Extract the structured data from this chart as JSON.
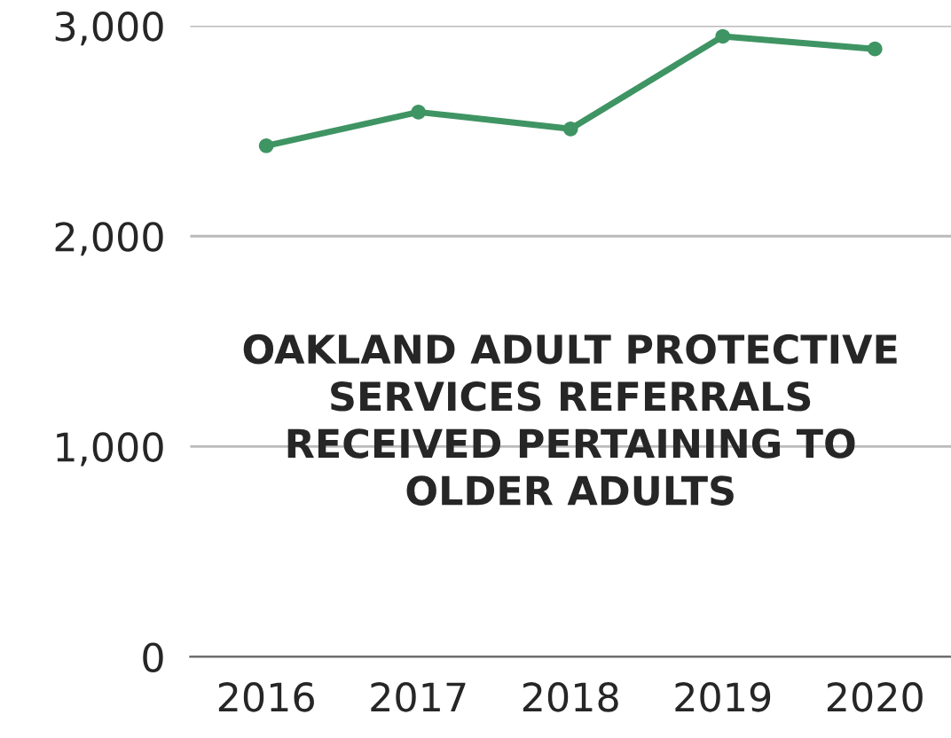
{
  "chart_data": {
    "type": "line",
    "title": "OAKLAND ADULT PROTECTIVE SERVICES REFERRALS RECEIVED PERTAINING TO OLDER ADULTS",
    "categories": [
      "2016",
      "2017",
      "2018",
      "2019",
      "2020"
    ],
    "series": [
      {
        "color": "#3f9463",
        "values": [
          2430,
          2590,
          2510,
          2950,
          2890
        ]
      }
    ],
    "ylim": [
      0,
      3000
    ],
    "yticks": [
      0,
      {
        "value": 1000,
        "label": "1,000"
      },
      {
        "value": 2000,
        "label": "2,000"
      },
      {
        "value": 3000,
        "label": "3,000"
      }
    ],
    "grid": "y",
    "marker": "circle",
    "line_style": "solid"
  }
}
